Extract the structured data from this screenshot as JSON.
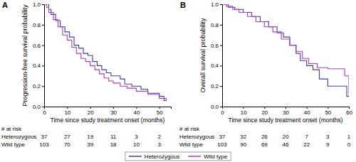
{
  "chart_data": [
    {
      "type": "line",
      "title": "A",
      "line_style": "step",
      "legend": "bottom",
      "x_label": "Time since study treatment onset (months)",
      "y_label": "Progression-free survival probability",
      "xlim": [
        0,
        55
      ],
      "xticks": [
        0,
        10,
        20,
        30,
        40,
        50
      ],
      "ylim": [
        0,
        1
      ],
      "yticks": [
        {
          "value": 0,
          "label": "0.0"
        },
        {
          "value": 0.2,
          "label": "0.2"
        },
        {
          "value": 0.4,
          "label": "0.4"
        },
        {
          "value": 0.6,
          "label": "0.6"
        },
        {
          "value": 0.8,
          "label": "0.8"
        },
        {
          "value": 1,
          "label": "1.0"
        }
      ],
      "series": [
        {
          "name": "Heterozygous",
          "color": "#3a3fb0",
          "x": [
            0,
            2,
            3,
            5,
            7,
            9,
            11,
            13,
            15,
            17,
            19,
            21,
            23,
            25,
            27,
            29,
            33,
            35,
            38,
            42,
            45,
            50,
            52,
            53
          ],
          "values": [
            1,
            0.95,
            0.9,
            0.84,
            0.78,
            0.73,
            0.68,
            0.6,
            0.57,
            0.52,
            0.5,
            0.44,
            0.4,
            0.36,
            0.33,
            0.3,
            0.27,
            0.22,
            0.2,
            0.17,
            0.13,
            0.1,
            0.06,
            0.06
          ]
        },
        {
          "name": "Wild type",
          "color": "#b03cc0",
          "x": [
            0,
            1,
            2,
            4,
            6,
            8,
            10,
            12,
            14,
            16,
            18,
            20,
            22,
            24,
            26,
            28,
            30,
            33,
            36,
            40,
            45,
            50,
            53
          ],
          "values": [
            1,
            0.97,
            0.92,
            0.85,
            0.78,
            0.7,
            0.65,
            0.58,
            0.52,
            0.47,
            0.44,
            0.4,
            0.36,
            0.32,
            0.28,
            0.25,
            0.23,
            0.2,
            0.18,
            0.15,
            0.12,
            0.08,
            0.06
          ]
        }
      ],
      "at_risk": {
        "label": "# at risk",
        "rows": [
          {
            "name": "Heterozygous",
            "values": [
              37,
              27,
              19,
              11,
              3,
              2
            ]
          },
          {
            "name": "Wild type",
            "values": [
              103,
              70,
              39,
              18,
              10,
              3
            ]
          }
        ]
      }
    },
    {
      "type": "line",
      "title": "B",
      "line_style": "step",
      "x_label": "Time since study treatment onset (months)",
      "y_label": "Overall survival probability",
      "xlim": [
        0,
        60
      ],
      "xticks": [
        0,
        10,
        20,
        30,
        40,
        50,
        60
      ],
      "ylim": [
        0,
        1
      ],
      "yticks": [
        {
          "value": 0,
          "label": "0.0"
        },
        {
          "value": 0.2,
          "label": "0.2"
        },
        {
          "value": 0.4,
          "label": "0.4"
        },
        {
          "value": 0.6,
          "label": "0.6"
        },
        {
          "value": 0.8,
          "label": "0.8"
        },
        {
          "value": 1,
          "label": "1.0"
        }
      ],
      "series": [
        {
          "name": "Heterozygous",
          "color": "#3a3fb0",
          "x": [
            0,
            3,
            6,
            10,
            14,
            18,
            22,
            26,
            29,
            32,
            35,
            37,
            40,
            43,
            46,
            50,
            57,
            59,
            60
          ],
          "values": [
            1,
            0.97,
            0.95,
            0.92,
            0.88,
            0.83,
            0.78,
            0.72,
            0.68,
            0.6,
            0.52,
            0.45,
            0.4,
            0.36,
            0.27,
            0.2,
            0.2,
            0.1,
            0.1
          ]
        },
        {
          "name": "Wild type",
          "color": "#b03cc0",
          "x": [
            0,
            2,
            5,
            8,
            12,
            16,
            20,
            24,
            28,
            32,
            35,
            38,
            41,
            45,
            50,
            55,
            58,
            60
          ],
          "values": [
            1,
            0.98,
            0.95,
            0.92,
            0.88,
            0.83,
            0.78,
            0.73,
            0.66,
            0.6,
            0.54,
            0.47,
            0.42,
            0.38,
            0.37,
            0.37,
            0.3,
            0.12
          ]
        }
      ],
      "at_risk": {
        "label": "# at risk",
        "rows": [
          {
            "name": "Heterozygous",
            "values": [
              37,
              32,
              26,
              20,
              7,
              3,
              1
            ]
          },
          {
            "name": "Wild type",
            "values": [
              103,
              90,
              69,
              46,
              22,
              9,
              0
            ]
          }
        ]
      }
    }
  ]
}
